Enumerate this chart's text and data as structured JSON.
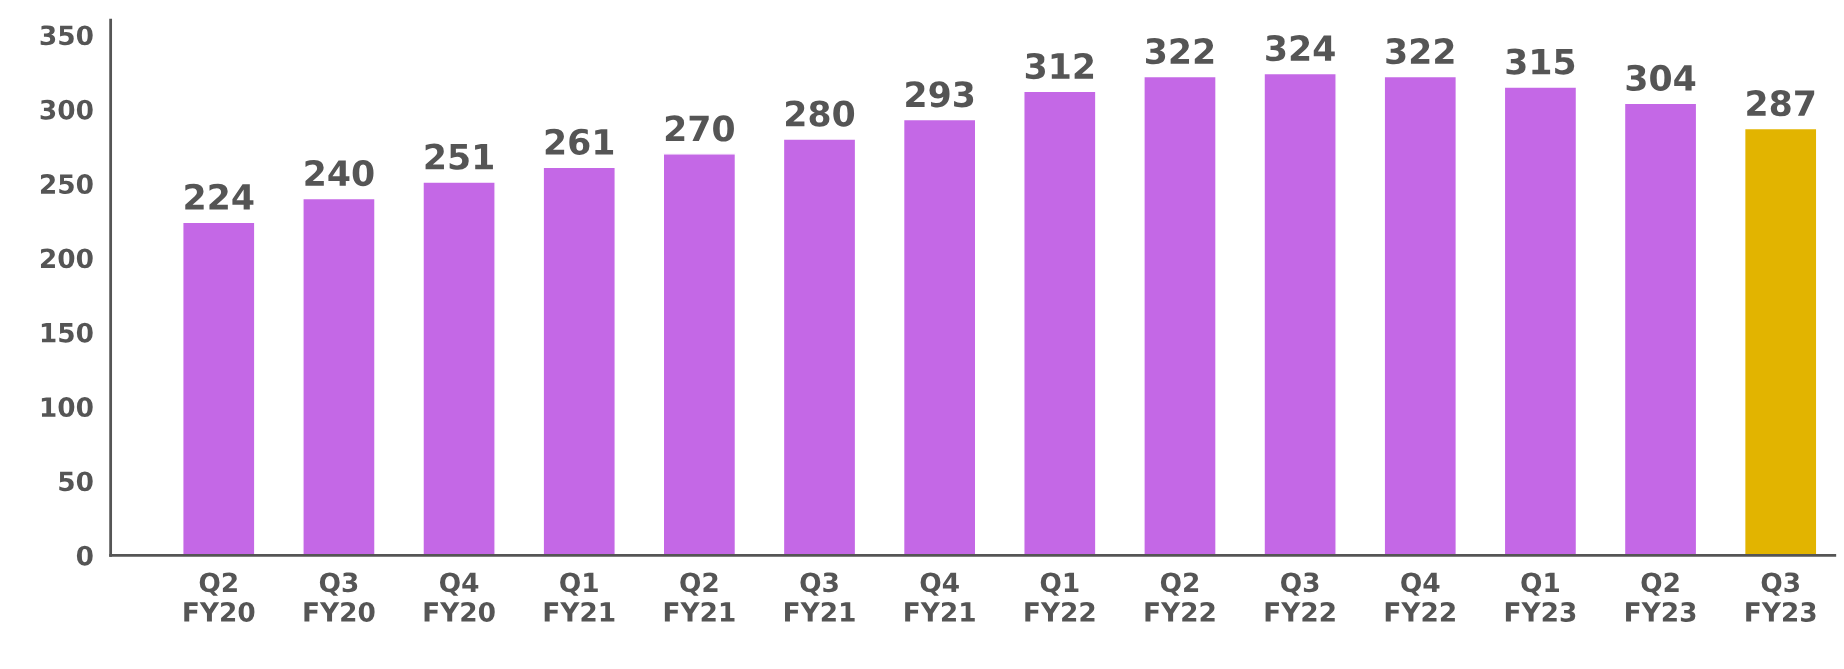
{
  "chart_data": {
    "type": "bar",
    "categories": [
      "Q2\nFY20",
      "Q3\nFY20",
      "Q4\nFY20",
      "Q1\nFY21",
      "Q2\nFY21",
      "Q3\nFY21",
      "Q4\nFY21",
      "Q1\nFY22",
      "Q2\nFY22",
      "Q3\nFY22",
      "Q4\nFY22",
      "Q1\nFY23",
      "Q2\nFY23",
      "Q3\nFY23"
    ],
    "values": [
      224,
      240,
      251,
      261,
      270,
      280,
      293,
      312,
      322,
      324,
      322,
      315,
      304,
      287
    ],
    "colors": [
      "#c468e6",
      "#c468e6",
      "#c468e6",
      "#c468e6",
      "#c468e6",
      "#c468e6",
      "#c468e6",
      "#c468e6",
      "#c468e6",
      "#c468e6",
      "#c468e6",
      "#c468e6",
      "#c468e6",
      "#e2b400"
    ],
    "ylim": [
      0,
      360
    ],
    "yticks": [
      0,
      50,
      100,
      150,
      200,
      250,
      300,
      350
    ],
    "data_labels": true,
    "grid": false,
    "legend": false
  }
}
